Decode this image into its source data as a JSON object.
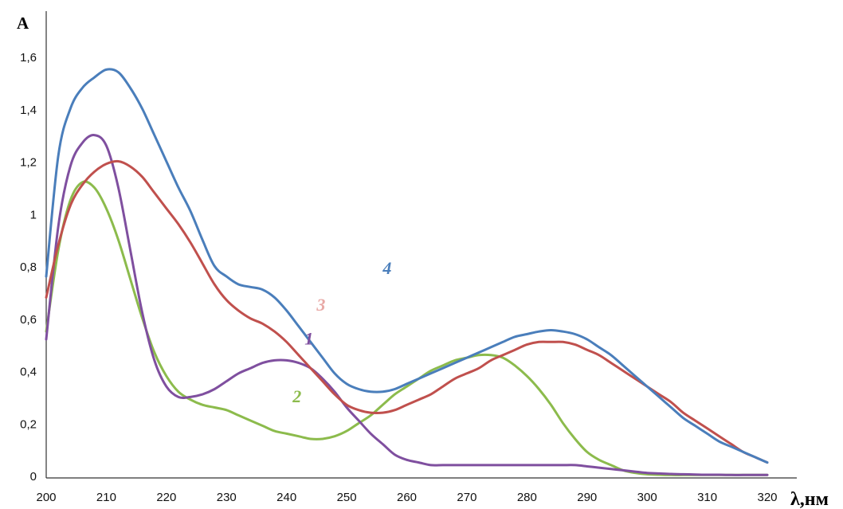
{
  "chart_data": {
    "type": "line",
    "xlabel": "λ,нм",
    "ylabel": "A",
    "xlim": [
      200,
      320
    ],
    "ylim": [
      0,
      1.7
    ],
    "grid": false,
    "x_ticks": [
      "200",
      "210",
      "220",
      "230",
      "240",
      "250",
      "260",
      "270",
      "280",
      "290",
      "300",
      "310",
      "320"
    ],
    "y_ticks": [
      "0",
      "0,2",
      "0,4",
      "0,6",
      "0,8",
      "1",
      "1,2",
      "1,4",
      "1,6"
    ],
    "x_tick_values": [
      200,
      210,
      220,
      230,
      240,
      250,
      260,
      270,
      280,
      290,
      300,
      310,
      320
    ],
    "y_tick_values": [
      0,
      0.2,
      0.4,
      0.6,
      0.8,
      1.0,
      1.2,
      1.4,
      1.6
    ],
    "x": [
      200,
      202,
      204,
      206,
      208,
      210,
      212,
      214,
      216,
      218,
      220,
      222,
      224,
      226,
      228,
      230,
      232,
      234,
      236,
      238,
      240,
      242,
      244,
      246,
      248,
      250,
      252,
      254,
      256,
      258,
      260,
      262,
      264,
      266,
      268,
      270,
      272,
      274,
      276,
      278,
      280,
      282,
      284,
      286,
      288,
      290,
      292,
      294,
      296,
      298,
      300,
      302,
      304,
      306,
      308,
      310,
      312,
      314,
      316,
      318,
      320
    ],
    "series": [
      {
        "name": "1",
        "color": "#7f4f9f",
        "values": [
          0.52,
          0.95,
          1.18,
          1.27,
          1.3,
          1.26,
          1.1,
          0.86,
          0.62,
          0.44,
          0.34,
          0.3,
          0.3,
          0.31,
          0.33,
          0.36,
          0.39,
          0.41,
          0.43,
          0.44,
          0.44,
          0.43,
          0.41,
          0.37,
          0.32,
          0.26,
          0.21,
          0.16,
          0.12,
          0.08,
          0.06,
          0.05,
          0.04,
          0.04,
          0.04,
          0.04,
          0.04,
          0.04,
          0.04,
          0.04,
          0.04,
          0.04,
          0.04,
          0.04,
          0.04,
          0.035,
          0.03,
          0.025,
          0.02,
          0.015,
          0.01,
          0.008,
          0.006,
          0.005,
          0.004,
          0.003,
          0.003,
          0.002,
          0.002,
          0.002,
          0.002
        ]
      },
      {
        "name": "2",
        "color": "#8cbb4c",
        "values": [
          0.55,
          0.86,
          1.05,
          1.12,
          1.1,
          1.02,
          0.9,
          0.75,
          0.6,
          0.47,
          0.38,
          0.32,
          0.29,
          0.27,
          0.26,
          0.25,
          0.23,
          0.21,
          0.19,
          0.17,
          0.16,
          0.15,
          0.14,
          0.14,
          0.15,
          0.17,
          0.2,
          0.23,
          0.27,
          0.31,
          0.34,
          0.37,
          0.4,
          0.42,
          0.44,
          0.45,
          0.46,
          0.46,
          0.45,
          0.42,
          0.38,
          0.33,
          0.27,
          0.2,
          0.14,
          0.09,
          0.06,
          0.04,
          0.02,
          0.01,
          0.005,
          0.003,
          0.002,
          0.002,
          0.002,
          0.002,
          0.002,
          0.002,
          0.002,
          0.002,
          0.002
        ]
      },
      {
        "name": "3",
        "color": "#c0504d",
        "values": [
          0.68,
          0.88,
          1.03,
          1.11,
          1.16,
          1.19,
          1.2,
          1.18,
          1.14,
          1.08,
          1.02,
          0.96,
          0.89,
          0.81,
          0.73,
          0.67,
          0.63,
          0.6,
          0.58,
          0.55,
          0.51,
          0.46,
          0.41,
          0.36,
          0.31,
          0.27,
          0.25,
          0.24,
          0.24,
          0.25,
          0.27,
          0.29,
          0.31,
          0.34,
          0.37,
          0.39,
          0.41,
          0.44,
          0.46,
          0.48,
          0.5,
          0.51,
          0.51,
          0.51,
          0.5,
          0.48,
          0.46,
          0.43,
          0.4,
          0.37,
          0.34,
          0.31,
          0.28,
          0.24,
          0.21,
          0.18,
          0.15,
          0.12,
          0.09,
          0.07,
          0.05
        ]
      },
      {
        "name": "4",
        "color": "#4a7ebb",
        "values": [
          0.76,
          1.22,
          1.4,
          1.48,
          1.52,
          1.55,
          1.54,
          1.48,
          1.4,
          1.3,
          1.2,
          1.1,
          1.01,
          0.9,
          0.8,
          0.76,
          0.73,
          0.72,
          0.71,
          0.68,
          0.63,
          0.57,
          0.51,
          0.45,
          0.39,
          0.35,
          0.33,
          0.32,
          0.32,
          0.33,
          0.35,
          0.37,
          0.39,
          0.41,
          0.43,
          0.45,
          0.47,
          0.49,
          0.51,
          0.53,
          0.54,
          0.55,
          0.555,
          0.55,
          0.54,
          0.52,
          0.49,
          0.46,
          0.42,
          0.38,
          0.34,
          0.3,
          0.26,
          0.22,
          0.19,
          0.16,
          0.13,
          0.11,
          0.09,
          0.07,
          0.05
        ]
      }
    ],
    "annotations": [
      {
        "text": "1",
        "x": 243,
        "y": 0.5,
        "color": "#7f4f9f"
      },
      {
        "text": "2",
        "x": 241,
        "y": 0.28,
        "color": "#8cbb4c"
      },
      {
        "text": "3",
        "x": 245,
        "y": 0.63,
        "color": "#e8a9a6"
      },
      {
        "text": "4",
        "x": 256,
        "y": 0.77,
        "color": "#4a7ebb"
      }
    ]
  }
}
